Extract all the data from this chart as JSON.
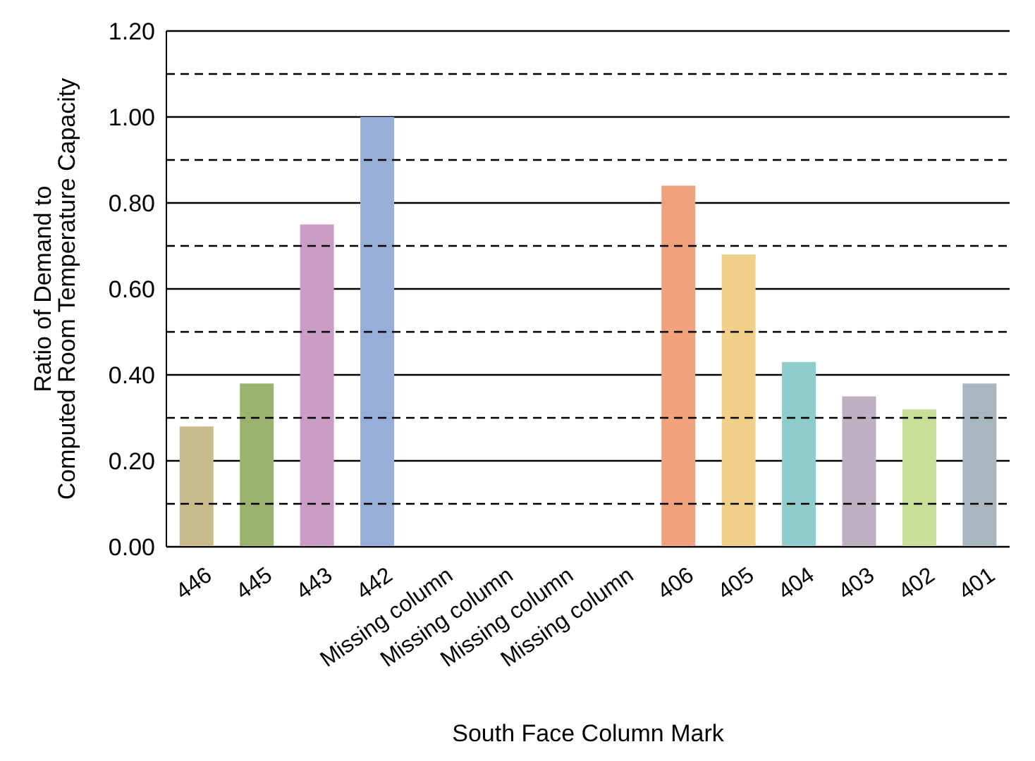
{
  "chart_data": {
    "type": "bar",
    "xlabel": "South Face Column Mark",
    "ylabel": "Ratio of Demand to Computed Room Temperature Capacity",
    "categories": [
      "446",
      "445",
      "443",
      "442",
      "Missing column",
      "Missing column",
      "Missing column",
      "Missing column",
      "406",
      "405",
      "404",
      "403",
      "402",
      "401"
    ],
    "values": [
      0.28,
      0.38,
      0.75,
      1.0,
      null,
      null,
      null,
      null,
      0.84,
      0.68,
      0.43,
      0.35,
      0.32,
      0.38
    ],
    "colors": [
      "#c9bb8c",
      "#9ab36e",
      "#cb9cc4",
      "#97afd8",
      null,
      null,
      null,
      null,
      "#f0a27c",
      "#efcf89",
      "#8fcdcc",
      "#beb0c2",
      "#c9df98",
      "#a7b6bf"
    ],
    "ylim": [
      0,
      1.2
    ],
    "yticks": [
      {
        "value": 0,
        "label": "0.00"
      },
      {
        "value": 0.2,
        "label": "0.20"
      },
      {
        "value": 0.4,
        "label": "0.40"
      },
      {
        "value": 0.6,
        "label": "0.60"
      },
      {
        "value": 0.8,
        "label": "0.80"
      },
      {
        "value": 1,
        "label": "1.00"
      },
      {
        "value": 1.2,
        "label": "1.20"
      }
    ],
    "grid": "y",
    "ref_lines": [
      {
        "axis": "y",
        "value": 0.1,
        "line_style": "dashed"
      },
      {
        "axis": "y",
        "value": 0.3,
        "line_style": "dashed"
      },
      {
        "axis": "y",
        "value": 0.5,
        "line_style": "dashed"
      },
      {
        "axis": "y",
        "value": 0.7,
        "line_style": "dashed"
      },
      {
        "axis": "y",
        "value": 0.9,
        "line_style": "dashed"
      },
      {
        "axis": "y",
        "value": 1.1,
        "line_style": "dashed"
      }
    ]
  }
}
